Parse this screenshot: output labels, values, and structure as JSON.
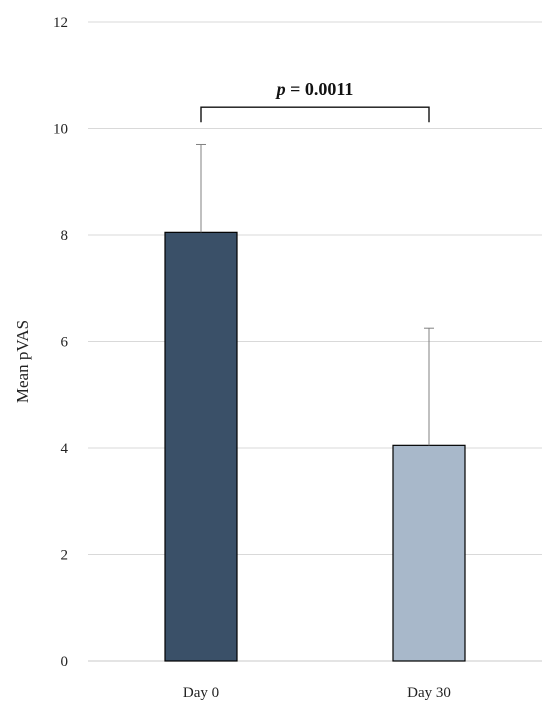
{
  "chart_data": {
    "type": "bar",
    "categories": [
      "Day 0",
      "Day 30"
    ],
    "values": [
      8.05,
      4.05
    ],
    "error_upper": [
      1.65,
      2.2
    ],
    "ylabel": "Mean pVAS",
    "xlabel": "",
    "ylim": [
      0,
      12
    ],
    "yticks": [
      0,
      2,
      4,
      6,
      8,
      10,
      12
    ],
    "grid": true,
    "legend": "none",
    "colors": [
      "#3a5068",
      "#a8b8ca"
    ],
    "significance": {
      "p_symbol": "p",
      "p_text": " = 0.0011",
      "between": [
        "Day 0",
        "Day 30"
      ],
      "bracket_y": 10.4
    }
  }
}
